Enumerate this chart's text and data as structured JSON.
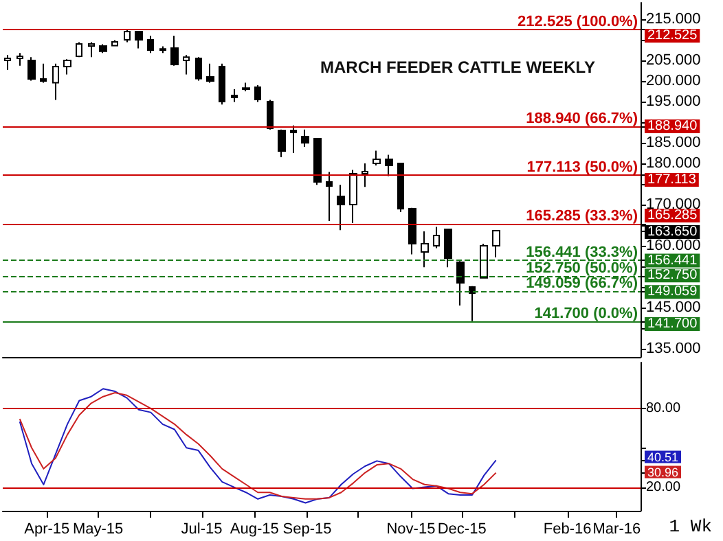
{
  "chart_data": [
    {
      "type": "candlestick",
      "title": "MARCH FEEDER CATTLE WEEKLY",
      "x": [
        "2015-03-09",
        "2015-03-16",
        "2015-03-23",
        "2015-03-30",
        "2015-04-06",
        "2015-04-13",
        "2015-04-20",
        "2015-04-27",
        "2015-05-04",
        "2015-05-11",
        "2015-05-18",
        "2015-05-25",
        "2015-06-01",
        "2015-06-08",
        "2015-06-15",
        "2015-06-22",
        "2015-06-29",
        "2015-07-06",
        "2015-07-13",
        "2015-07-20",
        "2015-07-27",
        "2015-08-03",
        "2015-08-10",
        "2015-08-17",
        "2015-08-24",
        "2015-08-31",
        "2015-09-07",
        "2015-09-14",
        "2015-09-21",
        "2015-09-28",
        "2015-10-05",
        "2015-10-12",
        "2015-10-19",
        "2015-10-26",
        "2015-11-02",
        "2015-11-09",
        "2015-11-16",
        "2015-11-23",
        "2015-11-30",
        "2015-12-07",
        "2015-12-14",
        "2015-12-21"
      ],
      "ohlc": [
        [
          205,
          206.3,
          202.7,
          205.5
        ],
        [
          205.5,
          206.8,
          203.7,
          206
        ],
        [
          205,
          205.8,
          200.1,
          200.5
        ],
        [
          200.5,
          204.2,
          199.6,
          200
        ],
        [
          199.6,
          204.2,
          195.4,
          203.5
        ],
        [
          203.5,
          205.3,
          201.6,
          205
        ],
        [
          206,
          209.4,
          205.8,
          209
        ],
        [
          208.5,
          209.4,
          205.8,
          209
        ],
        [
          208.5,
          208.9,
          206.8,
          207.2
        ],
        [
          208.6,
          209.9,
          208.4,
          209.5
        ],
        [
          210,
          212.5,
          209.4,
          212
        ],
        [
          212,
          212,
          207.9,
          210
        ],
        [
          210,
          211,
          206.8,
          207.5
        ],
        [
          207.5,
          208.4,
          206.8,
          207.8
        ],
        [
          208,
          211,
          203.7,
          204
        ],
        [
          205,
          206.3,
          201.6,
          205.8
        ],
        [
          205.5,
          205.8,
          200.1,
          200.6
        ],
        [
          201,
          204.2,
          199.6,
          200
        ],
        [
          203.5,
          204.2,
          194.3,
          195
        ],
        [
          196.5,
          198,
          194.9,
          196
        ],
        [
          198,
          199.6,
          197.5,
          198.3
        ],
        [
          198.5,
          199,
          194.9,
          195.5
        ],
        [
          195,
          195.4,
          188.2,
          188.5
        ],
        [
          188,
          188.2,
          181.5,
          183
        ],
        [
          188,
          189.2,
          182.5,
          187.5
        ],
        [
          186.5,
          188.2,
          184,
          185
        ],
        [
          186,
          186.1,
          174.8,
          175.5
        ],
        [
          175.5,
          177.9,
          166,
          174.5
        ],
        [
          172,
          174.8,
          163.8,
          170
        ],
        [
          170,
          178.4,
          165.5,
          177.5
        ],
        [
          177.5,
          180,
          174.3,
          178
        ],
        [
          180,
          183.1,
          179.5,
          181
        ],
        [
          181,
          182.1,
          176.9,
          179.5
        ],
        [
          180,
          180,
          168.2,
          169
        ],
        [
          169,
          169.2,
          157.9,
          160.5
        ],
        [
          158.5,
          163.5,
          154.8,
          160.5
        ],
        [
          160,
          164.6,
          159.4,
          162.5
        ],
        [
          164,
          164,
          154.8,
          157
        ],
        [
          156,
          156.3,
          145.5,
          151
        ],
        [
          150,
          150.2,
          141.7,
          148.5
        ],
        [
          152.2,
          160.5,
          152.2,
          160
        ],
        [
          160,
          163.8,
          157.2,
          163.65
        ]
      ],
      "xlim": [
        "2015-03-06",
        "2016-03-15"
      ],
      "ylim": [
        133,
        219
      ],
      "yticks": [
        {
          "value": 135,
          "label": "135.000"
        },
        {
          "value": 140,
          "label": null
        },
        {
          "value": 145,
          "label": "145.000"
        },
        {
          "value": 150,
          "label": null
        },
        {
          "value": 155,
          "label": null
        },
        {
          "value": 160,
          "label": "160.000"
        },
        {
          "value": 165,
          "label": null
        },
        {
          "value": 170,
          "label": "170.000"
        },
        {
          "value": 175,
          "label": null
        },
        {
          "value": 180,
          "label": "180.000"
        },
        {
          "value": 185,
          "label": "185.000"
        },
        {
          "value": 190,
          "label": null
        },
        {
          "value": 195,
          "label": "195.000"
        },
        {
          "value": 200,
          "label": "200.000"
        },
        {
          "value": 205,
          "label": "205.000"
        },
        {
          "value": 210,
          "label": null
        },
        {
          "value": 215,
          "label": "215.000"
        },
        {
          "value": 212.525,
          "label": "212.525"
        },
        {
          "value": 188.94,
          "label": "188.940"
        },
        {
          "value": 177.113,
          "label": "177.113"
        },
        {
          "value": 165.285,
          "label": "165.285"
        },
        {
          "value": 163.65,
          "label": "163.650"
        },
        {
          "value": 156.441,
          "label": "156.441"
        },
        {
          "value": 152.75,
          "label": "152.750"
        },
        {
          "value": 149.059,
          "label": "149.059"
        },
        {
          "value": 141.7,
          "label": "141.700"
        }
      ],
      "tick_labels": "y",
      "ref_lines": [
        {
          "axis": "y",
          "value": 212.525,
          "label": "212.525 (100.0%)",
          "color": "#cc0000",
          "line_style": "solid"
        },
        {
          "axis": "y",
          "value": 188.94,
          "label": "188.940 (66.7%)",
          "color": "#cc0000",
          "line_style": "solid"
        },
        {
          "axis": "y",
          "value": 177.113,
          "label": "177.113 (50.0%)",
          "color": "#cc0000",
          "line_style": "solid"
        },
        {
          "axis": "y",
          "value": 165.285,
          "label": "165.285 (33.3%)",
          "color": "#cc0000",
          "line_style": "solid"
        },
        {
          "axis": "y",
          "value": 156.441,
          "label": "156.441 (33.3%)",
          "color": "#1a7a1a",
          "line_style": "dashed"
        },
        {
          "axis": "y",
          "value": 152.75,
          "label": "152.750 (50.0%)",
          "color": "#1a7a1a",
          "line_style": "dashed"
        },
        {
          "axis": "y",
          "value": 149.059,
          "label": "149.059 (66.7%)",
          "color": "#1a7a1a",
          "line_style": "dashed"
        },
        {
          "axis": "y",
          "value": 141.7,
          "label": "141.700 (0.0%)",
          "color": "#1a7a1a",
          "line_style": "solid"
        }
      ]
    },
    {
      "type": "line",
      "x": [
        "2015-03-16",
        "2015-03-23",
        "2015-03-30",
        "2015-04-06",
        "2015-04-13",
        "2015-04-20",
        "2015-04-27",
        "2015-05-04",
        "2015-05-11",
        "2015-05-18",
        "2015-05-25",
        "2015-06-01",
        "2015-06-08",
        "2015-06-15",
        "2015-06-22",
        "2015-06-29",
        "2015-07-06",
        "2015-07-13",
        "2015-07-20",
        "2015-07-27",
        "2015-08-03",
        "2015-08-10",
        "2015-08-17",
        "2015-08-24",
        "2015-08-31",
        "2015-09-07",
        "2015-09-14",
        "2015-09-21",
        "2015-09-28",
        "2015-10-05",
        "2015-10-12",
        "2015-10-19",
        "2015-10-26",
        "2015-11-02",
        "2015-11-09",
        "2015-11-16",
        "2015-11-23",
        "2015-11-30",
        "2015-12-07",
        "2015-12-14",
        "2015-12-21"
      ],
      "series": [
        {
          "color": "#1f1fbf",
          "values": [
            70,
            38,
            22,
            45,
            68,
            86,
            89,
            95,
            93,
            88,
            79,
            77,
            68,
            64,
            50,
            48,
            35,
            24,
            20,
            16,
            11,
            14,
            13,
            11,
            8,
            11,
            12,
            22,
            30,
            36,
            40,
            38,
            28,
            19,
            20,
            21,
            15,
            14,
            14,
            29,
            40.51
          ]
        },
        {
          "color": "#cc2222",
          "values": [
            72,
            50,
            34,
            42,
            60,
            75,
            84,
            89,
            92,
            90,
            85,
            80,
            74,
            68,
            60,
            53,
            44,
            34,
            28,
            22,
            16,
            16,
            13,
            12,
            11,
            11,
            12,
            16,
            23,
            31,
            37,
            38,
            34,
            26,
            22,
            21,
            19,
            16,
            15,
            22,
            30.96
          ]
        }
      ],
      "xlim": [
        "2015-03-06",
        "2016-03-15"
      ],
      "ylim": [
        2,
        115
      ],
      "xticks": [
        {
          "value": "2015-04-01",
          "label": "Apr-15"
        },
        {
          "value": "2015-05-01",
          "label": "May-15"
        },
        {
          "value": "2015-06-01",
          "label": null
        },
        {
          "value": "2015-07-01",
          "label": "Jul-15"
        },
        {
          "value": "2015-08-01",
          "label": "Aug-15"
        },
        {
          "value": "2015-09-01",
          "label": "Sep-15"
        },
        {
          "value": "2015-10-01",
          "label": null
        },
        {
          "value": "2015-11-01",
          "label": "Nov-15"
        },
        {
          "value": "2015-12-01",
          "label": "Dec-15"
        },
        {
          "value": "2016-01-01",
          "label": null
        },
        {
          "value": "2016-02-01",
          "label": "Feb-16"
        },
        {
          "value": "2016-03-01",
          "label": "Mar-16"
        }
      ],
      "yticks": [
        {
          "value": 20,
          "label": "20.00"
        },
        {
          "value": 50,
          "label": null
        },
        {
          "value": 80,
          "label": "80.00"
        },
        {
          "value": 40.51,
          "label": "40.51"
        },
        {
          "value": 30.96,
          "label": "30.96"
        }
      ],
      "ref_lines": [
        {
          "axis": "y",
          "value": 80,
          "color": "#cc0000"
        },
        {
          "axis": "y",
          "value": 20,
          "color": "#cc0000"
        }
      ],
      "annotations": [
        "1 Wk"
      ]
    }
  ]
}
